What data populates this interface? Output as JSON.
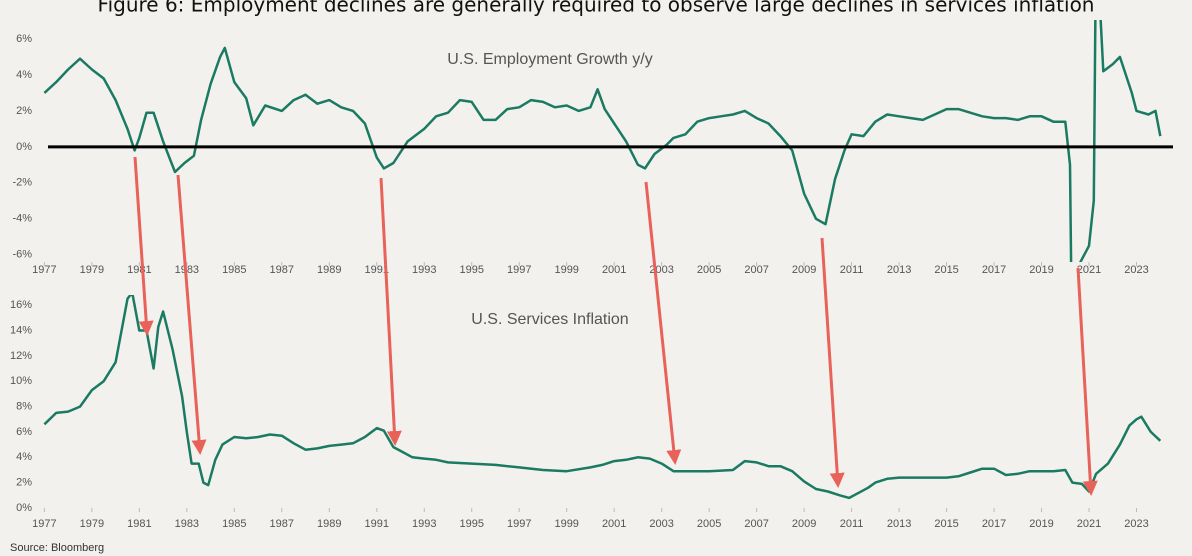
{
  "title": "Figure 6: Employment declines are generally required to observe large declines in services inflation",
  "source": "Source: Bloomberg",
  "chart_data": [
    {
      "type": "line",
      "annotation": "U.S. Employment Growth y/y",
      "xlim": [
        1976.9,
        2024.2
      ],
      "xticks": [
        1977,
        1979,
        1981,
        1983,
        1985,
        1987,
        1989,
        1991,
        1993,
        1995,
        1997,
        1999,
        2001,
        2003,
        2005,
        2007,
        2009,
        2011,
        2013,
        2015,
        2017,
        2019,
        2021,
        2023
      ],
      "ylim": [
        -6.4,
        7.05
      ],
      "yticks": [
        {
          "value": -6,
          "label": "-6%"
        },
        {
          "value": -4,
          "label": "-4%"
        },
        {
          "value": -2,
          "label": "-2%"
        },
        {
          "value": 0,
          "label": "0%"
        },
        {
          "value": 2,
          "label": "2%"
        },
        {
          "value": 4,
          "label": "4%"
        },
        {
          "value": 6,
          "label": "6%"
        }
      ],
      "series": [
        {
          "color": "#1b7a62",
          "x": [
            1977.0,
            1977.5,
            1978.0,
            1978.5,
            1979.0,
            1979.5,
            1980.0,
            1980.5,
            1980.8,
            1981.0,
            1981.3,
            1981.6,
            1982.0,
            1982.5,
            1982.9,
            1983.3,
            1983.6,
            1984.0,
            1984.4,
            1984.6,
            1985.0,
            1985.5,
            1985.8,
            1986.3,
            1987.0,
            1987.5,
            1988.0,
            1988.5,
            1989.0,
            1989.5,
            1990.0,
            1990.5,
            1991.0,
            1991.3,
            1991.7,
            1992.3,
            1993.0,
            1993.5,
            1994.0,
            1994.5,
            1995.0,
            1995.5,
            1996.0,
            1996.5,
            1997.0,
            1997.5,
            1998.0,
            1998.5,
            1999.0,
            1999.5,
            2000.0,
            2000.3,
            2000.6,
            2001.0,
            2001.5,
            2002.0,
            2002.3,
            2002.7,
            2003.2,
            2003.5,
            2004.0,
            2004.5,
            2005.0,
            2005.5,
            2006.0,
            2006.5,
            2007.0,
            2007.5,
            2008.0,
            2008.5,
            2009.0,
            2009.5,
            2009.9,
            2010.3,
            2010.7,
            2011.0,
            2011.5,
            2012.0,
            2012.5,
            2013.0,
            2013.5,
            2014.0,
            2014.5,
            2015.0,
            2015.5,
            2016.0,
            2016.5,
            2017.0,
            2017.5,
            2018.0,
            2018.5,
            2019.0,
            2019.5,
            2020.0,
            2020.2,
            2020.3,
            2020.6,
            2021.0,
            2021.2,
            2021.3,
            2021.6,
            2022.0,
            2022.3,
            2022.8,
            2023.0,
            2023.5,
            2023.8,
            2024.0
          ],
          "values": [
            3.0,
            3.6,
            4.3,
            4.9,
            4.3,
            3.8,
            2.6,
            1.0,
            -0.2,
            0.5,
            1.9,
            1.9,
            0.3,
            -1.4,
            -0.9,
            -0.5,
            1.5,
            3.5,
            5.0,
            5.5,
            3.6,
            2.7,
            1.2,
            2.3,
            2.0,
            2.6,
            2.9,
            2.4,
            2.6,
            2.2,
            2.0,
            1.3,
            -0.6,
            -1.2,
            -0.9,
            0.3,
            1.0,
            1.7,
            1.9,
            2.6,
            2.5,
            1.5,
            1.5,
            2.1,
            2.2,
            2.6,
            2.5,
            2.2,
            2.3,
            2.0,
            2.2,
            3.2,
            2.1,
            1.3,
            0.3,
            -1.0,
            -1.2,
            -0.4,
            0.1,
            0.5,
            0.7,
            1.4,
            1.6,
            1.7,
            1.8,
            2.0,
            1.6,
            1.3,
            0.6,
            -0.2,
            -2.6,
            -4.0,
            -4.3,
            -1.8,
            -0.2,
            0.7,
            0.6,
            1.4,
            1.8,
            1.7,
            1.6,
            1.5,
            1.8,
            2.1,
            2.1,
            1.9,
            1.7,
            1.6,
            1.6,
            1.5,
            1.7,
            1.7,
            1.4,
            1.4,
            -1.0,
            -13.0,
            -6.5,
            -5.5,
            -3.0,
            12.0,
            4.2,
            4.6,
            5.0,
            3.0,
            2.0,
            1.8,
            2.0,
            0.6
          ]
        }
      ]
    },
    {
      "type": "line",
      "annotation": "U.S. Services Inflation",
      "xlim": [
        1976.9,
        2024.2
      ],
      "xticks": [
        1977,
        1979,
        1981,
        1983,
        1985,
        1987,
        1989,
        1991,
        1993,
        1995,
        1997,
        1999,
        2001,
        2003,
        2005,
        2007,
        2009,
        2011,
        2013,
        2015,
        2017,
        2019,
        2021,
        2023
      ],
      "ylim": [
        0,
        16.8
      ],
      "yticks": [
        {
          "value": 0,
          "label": "0%"
        },
        {
          "value": 2,
          "label": "2%"
        },
        {
          "value": 4,
          "label": "4%"
        },
        {
          "value": 6,
          "label": "6%"
        },
        {
          "value": 8,
          "label": "8%"
        },
        {
          "value": 10,
          "label": "10%"
        },
        {
          "value": 12,
          "label": "12%"
        },
        {
          "value": 14,
          "label": "14%"
        },
        {
          "value": 16,
          "label": "16%"
        }
      ],
      "series": [
        {
          "color": "#1b7a62",
          "x": [
            1977.0,
            1977.5,
            1978.0,
            1978.5,
            1979.0,
            1979.5,
            1980.0,
            1980.5,
            1980.7,
            1981.0,
            1981.3,
            1981.6,
            1981.8,
            1982.0,
            1982.4,
            1982.8,
            1983.0,
            1983.2,
            1983.5,
            1983.7,
            1983.9,
            1984.2,
            1984.5,
            1985.0,
            1985.5,
            1986.0,
            1986.5,
            1987.0,
            1987.5,
            1988.0,
            1988.5,
            1989.0,
            1989.5,
            1990.0,
            1990.5,
            1991.0,
            1991.3,
            1991.7,
            1992.0,
            1992.5,
            1993.0,
            1993.5,
            1994.0,
            1995.0,
            1996.0,
            1997.0,
            1998.0,
            1999.0,
            2000.0,
            2000.5,
            2001.0,
            2001.5,
            2002.0,
            2002.5,
            2003.0,
            2003.5,
            2004.0,
            2004.5,
            2005.0,
            2006.0,
            2006.5,
            2007.0,
            2007.5,
            2008.0,
            2008.5,
            2009.0,
            2009.5,
            2010.0,
            2010.5,
            2010.9,
            2011.3,
            2011.7,
            2012.0,
            2012.5,
            2013.0,
            2014.0,
            2015.0,
            2015.5,
            2016.0,
            2016.5,
            2017.0,
            2017.5,
            2018.0,
            2018.5,
            2019.0,
            2019.5,
            2020.0,
            2020.3,
            2020.7,
            2021.0,
            2021.3,
            2021.8,
            2022.3,
            2022.7,
            2023.0,
            2023.2,
            2023.6,
            2024.0
          ],
          "values": [
            6.6,
            7.5,
            7.6,
            8.0,
            9.3,
            10.0,
            11.5,
            16.5,
            17.0,
            14.0,
            14.0,
            11.0,
            14.3,
            15.5,
            12.5,
            8.8,
            6.0,
            3.5,
            3.5,
            2.0,
            1.8,
            3.8,
            5.0,
            5.6,
            5.5,
            5.6,
            5.8,
            5.7,
            5.1,
            4.6,
            4.7,
            4.9,
            5.0,
            5.1,
            5.6,
            6.3,
            6.1,
            4.8,
            4.5,
            4.0,
            3.9,
            3.8,
            3.6,
            3.5,
            3.4,
            3.2,
            3.0,
            2.9,
            3.2,
            3.4,
            3.7,
            3.8,
            4.0,
            3.9,
            3.5,
            2.9,
            2.9,
            2.9,
            2.9,
            3.0,
            3.7,
            3.6,
            3.3,
            3.3,
            2.9,
            2.1,
            1.5,
            1.3,
            1.0,
            0.8,
            1.2,
            1.6,
            2.0,
            2.3,
            2.4,
            2.4,
            2.4,
            2.5,
            2.8,
            3.1,
            3.1,
            2.6,
            2.7,
            2.9,
            2.9,
            2.9,
            3.0,
            2.0,
            1.9,
            1.3,
            2.7,
            3.5,
            5.0,
            6.5,
            7.0,
            7.2,
            6.0,
            5.3
          ]
        }
      ]
    }
  ]
}
